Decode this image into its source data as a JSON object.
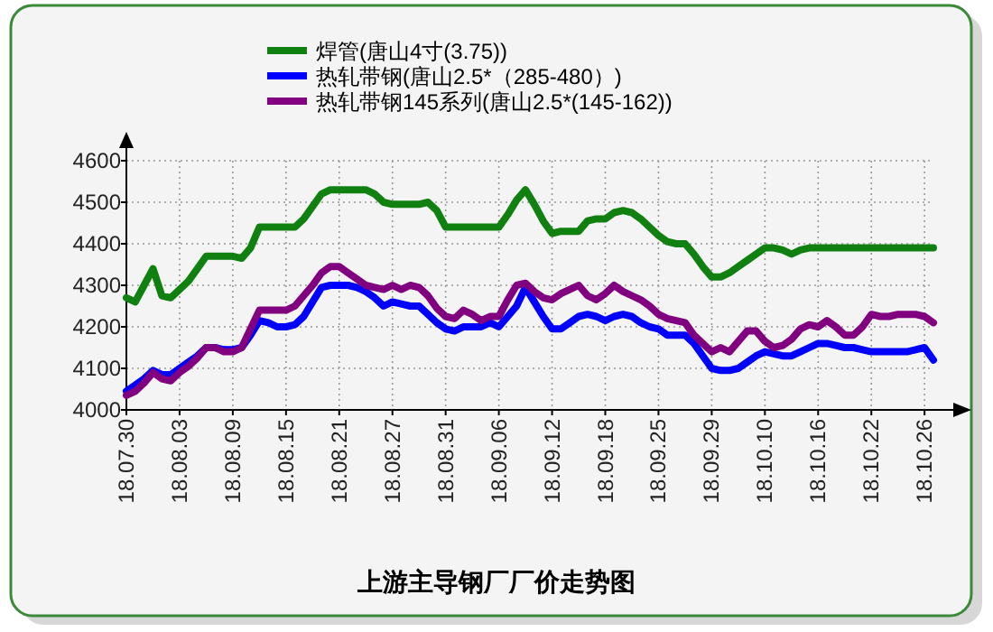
{
  "chart_data": {
    "type": "line",
    "title": "上游主导钢厂厂价走势图",
    "categories": [
      "18.07.30",
      null,
      null,
      null,
      null,
      null,
      "18.08.03",
      null,
      null,
      null,
      null,
      null,
      "18.08.09",
      null,
      null,
      null,
      null,
      null,
      "18.08.15",
      null,
      null,
      null,
      null,
      null,
      "18.08.21",
      null,
      null,
      null,
      null,
      null,
      "18.08.27",
      null,
      null,
      null,
      null,
      null,
      "18.08.31",
      null,
      null,
      null,
      null,
      null,
      "18.09.06",
      null,
      null,
      null,
      null,
      null,
      "18.09.12",
      null,
      null,
      null,
      null,
      null,
      "18.09.18",
      null,
      null,
      null,
      null,
      null,
      "18.09.25",
      null,
      null,
      null,
      null,
      null,
      "18.09.29",
      null,
      null,
      null,
      null,
      null,
      "18.10.10",
      null,
      null,
      null,
      null,
      null,
      "18.10.16",
      null,
      null,
      null,
      null,
      null,
      "18.10.22",
      null,
      null,
      null,
      null,
      null,
      "18.10.26",
      null
    ],
    "series": [
      {
        "name": "焊管(唐山4寸(3.75))",
        "color": "#108010",
        "values": [
          4270,
          4260,
          4300,
          4340,
          4275,
          4270,
          4290,
          4310,
          4340,
          4370,
          4370,
          4370,
          4370,
          4365,
          4390,
          4440,
          4440,
          4440,
          4440,
          4440,
          4460,
          4490,
          4520,
          4530,
          4530,
          4530,
          4530,
          4530,
          4520,
          4500,
          4495,
          4495,
          4495,
          4495,
          4500,
          4480,
          4440,
          4440,
          4440,
          4440,
          4440,
          4440,
          4440,
          4470,
          4505,
          4530,
          4495,
          4455,
          4425,
          4430,
          4430,
          4430,
          4455,
          4460,
          4460,
          4475,
          4480,
          4475,
          4460,
          4440,
          4420,
          4405,
          4400,
          4400,
          4375,
          4345,
          4320,
          4320,
          4330,
          4345,
          4360,
          4375,
          4390,
          4390,
          4385,
          4375,
          4385,
          4390,
          4390,
          4390,
          4390,
          4390,
          4390,
          4390,
          4390,
          4390,
          4390,
          4390,
          4390,
          4390,
          4390,
          4390
        ]
      },
      {
        "name": "热轧带钢(唐山2.5*（285-480）)",
        "color": "#0000ff",
        "values": [
          4045,
          4060,
          4075,
          4095,
          4085,
          4085,
          4100,
          4115,
          4130,
          4150,
          4150,
          4145,
          4145,
          4150,
          4180,
          4215,
          4210,
          4200,
          4200,
          4205,
          4225,
          4260,
          4295,
          4300,
          4300,
          4300,
          4295,
          4285,
          4270,
          4250,
          4260,
          4255,
          4250,
          4250,
          4230,
          4210,
          4195,
          4190,
          4200,
          4200,
          4200,
          4210,
          4200,
          4225,
          4250,
          4295,
          4260,
          4225,
          4195,
          4195,
          4210,
          4225,
          4230,
          4225,
          4215,
          4225,
          4230,
          4225,
          4210,
          4200,
          4195,
          4180,
          4180,
          4180,
          4160,
          4130,
          4100,
          4095,
          4095,
          4100,
          4115,
          4130,
          4140,
          4135,
          4130,
          4130,
          4140,
          4150,
          4160,
          4160,
          4155,
          4150,
          4150,
          4145,
          4140,
          4140,
          4140,
          4140,
          4140,
          4145,
          4150,
          4120
        ]
      },
      {
        "name": "热轧带钢145系列(唐山2.5*(145-162))",
        "color": "#800080",
        "values": [
          4035,
          4045,
          4065,
          4090,
          4075,
          4070,
          4090,
          4105,
          4125,
          4150,
          4150,
          4140,
          4140,
          4150,
          4195,
          4240,
          4240,
          4240,
          4240,
          4250,
          4275,
          4300,
          4330,
          4345,
          4345,
          4330,
          4315,
          4300,
          4295,
          4290,
          4300,
          4290,
          4300,
          4295,
          4275,
          4245,
          4225,
          4220,
          4240,
          4230,
          4215,
          4225,
          4225,
          4265,
          4300,
          4305,
          4285,
          4270,
          4265,
          4280,
          4290,
          4300,
          4275,
          4265,
          4280,
          4300,
          4285,
          4275,
          4265,
          4250,
          4230,
          4220,
          4215,
          4210,
          4180,
          4160,
          4140,
          4150,
          4140,
          4165,
          4190,
          4190,
          4165,
          4150,
          4155,
          4170,
          4195,
          4205,
          4200,
          4215,
          4200,
          4180,
          4180,
          4200,
          4230,
          4225,
          4225,
          4230,
          4230,
          4230,
          4225,
          4210
        ]
      }
    ],
    "ylim": [
      4000,
      4600
    ],
    "yticks": [
      4000,
      4100,
      4200,
      4300,
      4400,
      4500,
      4600
    ],
    "grid": true,
    "legend": "top",
    "marker": "none",
    "line_style": "solid"
  }
}
